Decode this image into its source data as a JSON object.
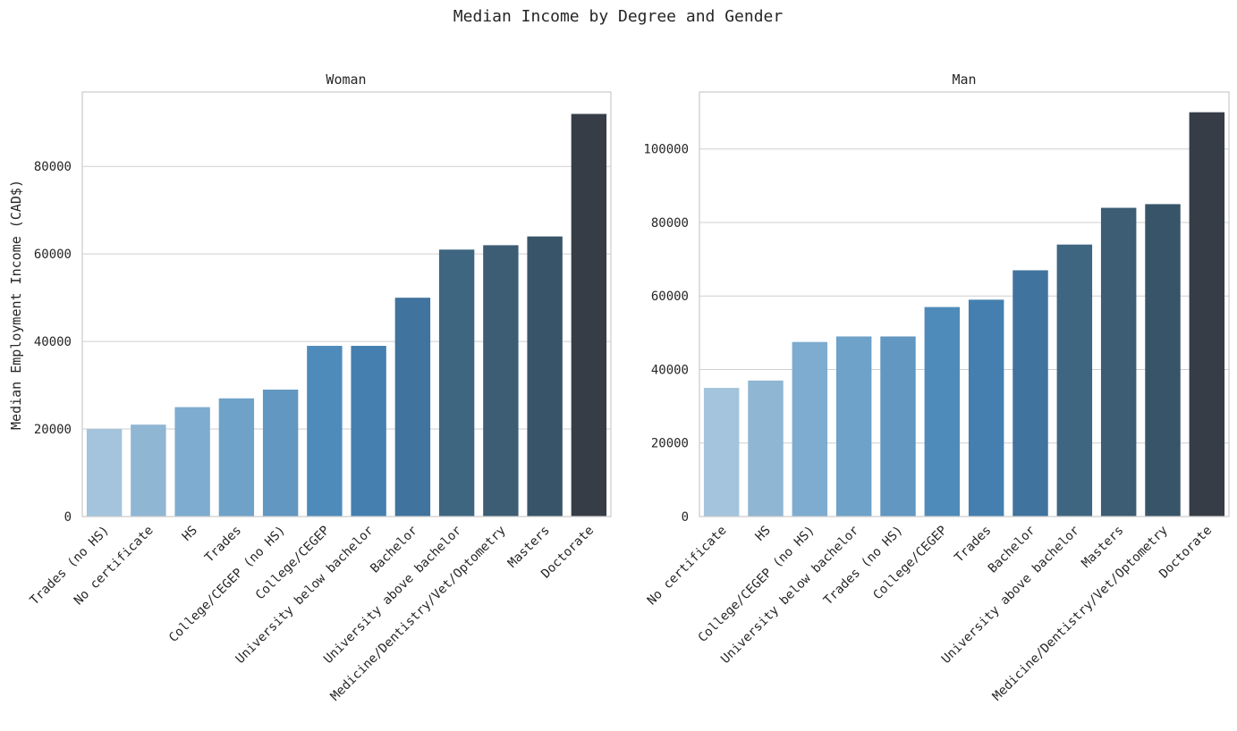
{
  "figure_title": "Median Income by Degree and Gender",
  "chart_data": [
    {
      "type": "bar",
      "title": "Woman",
      "xlabel": "",
      "ylabel": "Median Employment Income (CAD$)",
      "ylim": [
        0,
        97000
      ],
      "yticks": [
        0,
        20000,
        40000,
        60000,
        80000
      ],
      "grid": "horizontal",
      "categories": [
        "Trades (no HS)",
        "No certificate",
        "HS",
        "Trades",
        "College/CEGEP (no HS)",
        "College/CEGEP",
        "University below bachelor",
        "Bachelor",
        "University above bachelor",
        "Medicine/Dentistry/Vet/Optometry",
        "Masters",
        "Doctorate"
      ],
      "values": [
        20000,
        21000,
        25000,
        27000,
        29000,
        39000,
        39000,
        50000,
        61000,
        62000,
        64000,
        92000
      ],
      "colors": [
        "#a3c4dc",
        "#8fb6d3",
        "#7eacd0",
        "#6ea2c8",
        "#6197c0",
        "#4e8bbb",
        "#447fb0",
        "#40739d",
        "#3e6681",
        "#3c5d73",
        "#385468",
        "#373d47"
      ]
    },
    {
      "type": "bar",
      "title": "Man",
      "xlabel": "",
      "ylabel": "",
      "ylim": [
        0,
        115500
      ],
      "yticks": [
        0,
        20000,
        40000,
        60000,
        80000,
        100000
      ],
      "grid": "horizontal",
      "categories": [
        "No certificate",
        "HS",
        "College/CEGEP (no HS)",
        "University below bachelor",
        "Trades (no HS)",
        "College/CEGEP",
        "Trades",
        "Bachelor",
        "University above bachelor",
        "Masters",
        "Medicine/Dentistry/Vet/Optometry",
        "Doctorate"
      ],
      "values": [
        35000,
        37000,
        47500,
        49000,
        49000,
        57000,
        59000,
        67000,
        74000,
        84000,
        85000,
        110000
      ],
      "colors": [
        "#a3c4dc",
        "#8fb6d3",
        "#7eacd0",
        "#6ea2c8",
        "#6197c0",
        "#4e8bbb",
        "#447fb0",
        "#40739d",
        "#3e6681",
        "#3c5d73",
        "#385468",
        "#373d47"
      ]
    }
  ]
}
